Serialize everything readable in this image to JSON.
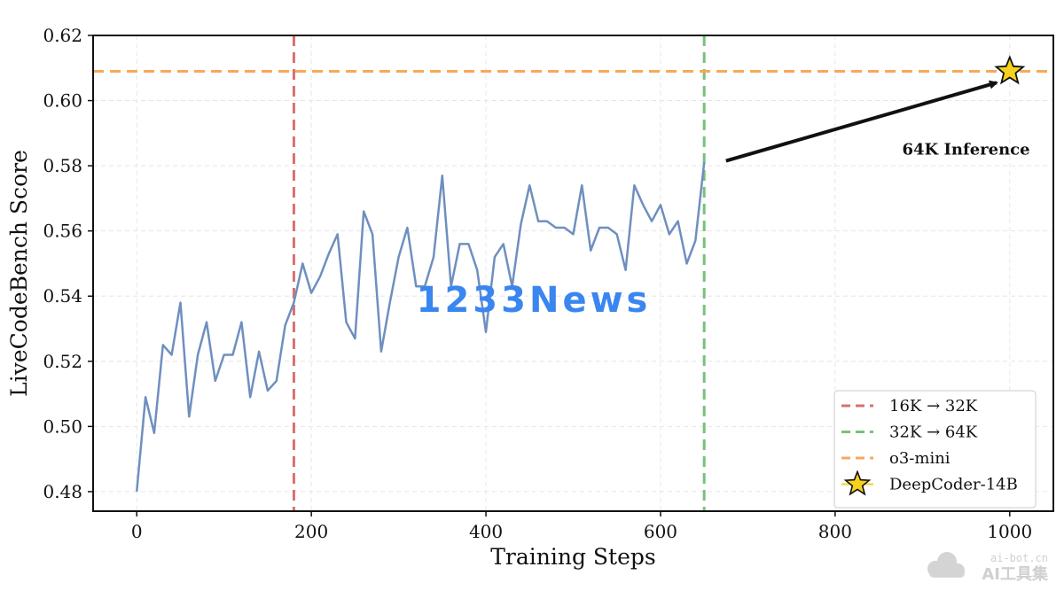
{
  "chart_data": {
    "type": "line",
    "xlabel": "Training Steps",
    "ylabel": "LiveCodeBench Score",
    "xlim": [
      -50,
      1050
    ],
    "ylim": [
      0.474,
      0.62
    ],
    "xticks": [
      0,
      200,
      400,
      600,
      800,
      1000
    ],
    "yticks": [
      0.48,
      0.5,
      0.52,
      0.54,
      0.56,
      0.58,
      0.6,
      0.62
    ],
    "grid": true,
    "legend_position": "lower-right",
    "series": [
      {
        "color": "#6f8fbf",
        "x": [
          0,
          10,
          20,
          30,
          40,
          50,
          60,
          70,
          80,
          90,
          100,
          110,
          120,
          130,
          140,
          150,
          160,
          170,
          180,
          190,
          200,
          210,
          220,
          230,
          240,
          250,
          260,
          270,
          280,
          290,
          300,
          310,
          320,
          330,
          340,
          350,
          360,
          370,
          380,
          390,
          400,
          410,
          420,
          430,
          440,
          450,
          460,
          470,
          480,
          490,
          500,
          510,
          520,
          530,
          540,
          550,
          560,
          570,
          580,
          590,
          600,
          610,
          620,
          630,
          640,
          650
        ],
        "y": [
          0.48,
          0.509,
          0.498,
          0.525,
          0.522,
          0.538,
          0.503,
          0.522,
          0.532,
          0.514,
          0.522,
          0.522,
          0.532,
          0.509,
          0.523,
          0.511,
          0.514,
          0.531,
          0.538,
          0.55,
          0.541,
          0.546,
          0.553,
          0.559,
          0.532,
          0.527,
          0.566,
          0.559,
          0.523,
          0.538,
          0.552,
          0.561,
          0.543,
          0.543,
          0.552,
          0.577,
          0.543,
          0.556,
          0.556,
          0.548,
          0.529,
          0.552,
          0.556,
          0.543,
          0.562,
          0.574,
          0.563,
          0.563,
          0.561,
          0.561,
          0.559,
          0.574,
          0.554,
          0.561,
          0.561,
          0.559,
          0.548,
          0.574,
          0.568,
          0.563,
          0.568,
          0.559,
          0.563,
          0.55,
          0.557,
          0.581
        ]
      }
    ],
    "vlines": [
      {
        "x": 180,
        "label": "16K → 32K",
        "color": "#d8716f"
      },
      {
        "x": 650,
        "label": "32K → 64K",
        "color": "#79c179"
      }
    ],
    "hlines": [
      {
        "y": 0.609,
        "label": "o3-mini",
        "color": "#f7a85a"
      }
    ],
    "points": [
      {
        "x": 1000,
        "y": 0.609,
        "label": "DeepCoder-14B",
        "color": "#f6d21c"
      }
    ],
    "annotation": {
      "text": "64K Inference",
      "arrow_from": [
        675,
        0.5815
      ],
      "arrow_to": [
        985,
        0.6055
      ],
      "text_at": [
        950,
        0.5835
      ]
    }
  },
  "overlays": {
    "center_text": "1233News",
    "corner_small": "ai-bot.cn",
    "corner_big": "AI工具集"
  }
}
